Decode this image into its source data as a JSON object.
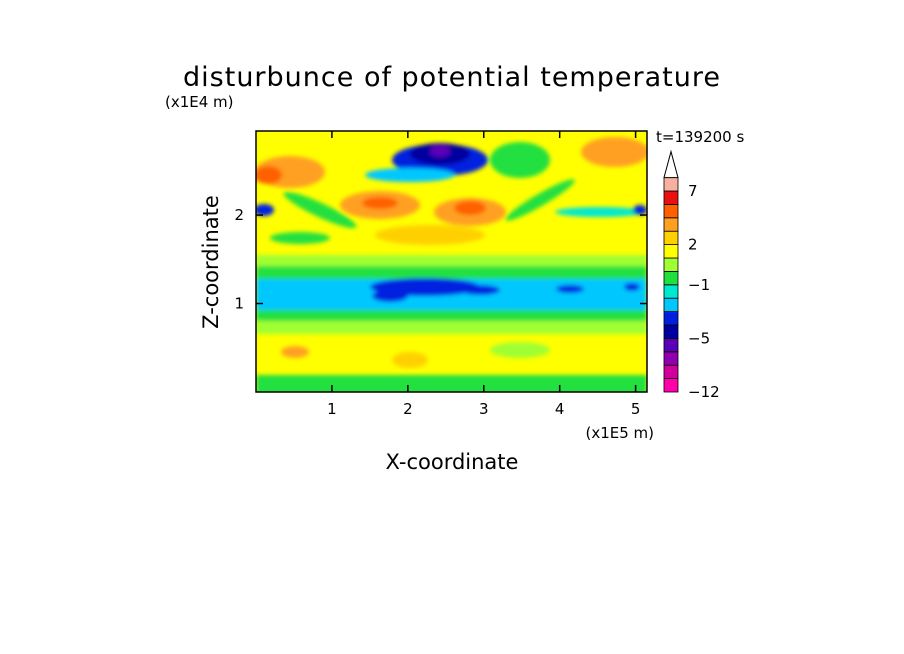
{
  "chart_data": {
    "type": "heatmap",
    "title": "disturbunce of potential temperature",
    "xlabel": "X-coordinate",
    "ylabel": "Z-coordinate",
    "x_unit": "(x1E5 m)",
    "y_unit": "(x1E4 m)",
    "time_label": "t=139200 s",
    "xlim": [
      0,
      5.15
    ],
    "ylim": [
      0,
      2.95
    ],
    "x_ticks": [
      "1",
      "2",
      "3",
      "4",
      "5"
    ],
    "y_ticks": [
      "1",
      "2"
    ],
    "colorbar": {
      "levels": [
        -12,
        -11,
        -9,
        -7,
        -5,
        -4,
        -3,
        -2,
        -1,
        0,
        1,
        2,
        3,
        4,
        5,
        7,
        9
      ],
      "colors": [
        "#ff00aa",
        "#d0009a",
        "#9000b0",
        "#5a00b8",
        "#0000a0",
        "#0020e0",
        "#00c8ff",
        "#00e8d0",
        "#20e040",
        "#a0ff30",
        "#ffff00",
        "#ffd000",
        "#ffa020",
        "#ff6000",
        "#e81010",
        "#f8b0a0",
        "#ffffff"
      ],
      "tick_labels": [
        "-12",
        "-5",
        "-1",
        "2",
        "7"
      ],
      "extend_max": true
    },
    "grid": false,
    "legend": "colorbar-right"
  },
  "colors": {
    "frame": "#000000",
    "background": "#ffffff"
  }
}
